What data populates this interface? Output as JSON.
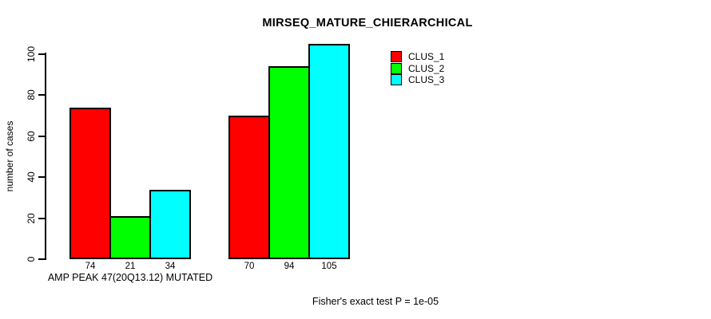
{
  "chart_data": {
    "type": "bar",
    "title": "MIRSEQ_MATURE_CHIERARCHICAL",
    "ylabel": "number of cases",
    "xlabel": "AMP PEAK 47(20Q13.12) MUTATED",
    "footnote": "Fisher's exact test P = 1e-05",
    "ylim": [
      0,
      105
    ],
    "yticks": [
      0,
      20,
      40,
      60,
      80,
      100
    ],
    "grid": false,
    "legend_position": "top-right",
    "series": [
      {
        "name": "CLUS_1",
        "color": "#ff0000"
      },
      {
        "name": "CLUS_2",
        "color": "#00ff00"
      },
      {
        "name": "CLUS_3",
        "color": "#00ffff"
      }
    ],
    "groups": [
      {
        "label": "AMP PEAK 47(20Q13.12) MUTATED",
        "values": [
          74,
          21,
          34
        ],
        "bar_labels": [
          "74",
          "21",
          "34"
        ]
      },
      {
        "label": "",
        "values": [
          70,
          94,
          105
        ],
        "bar_labels": [
          "70",
          "94",
          "105"
        ]
      }
    ]
  },
  "colors": {
    "background": "#ffffff",
    "axis": "#000000",
    "bar_border": "#000000",
    "text": "#000000"
  }
}
